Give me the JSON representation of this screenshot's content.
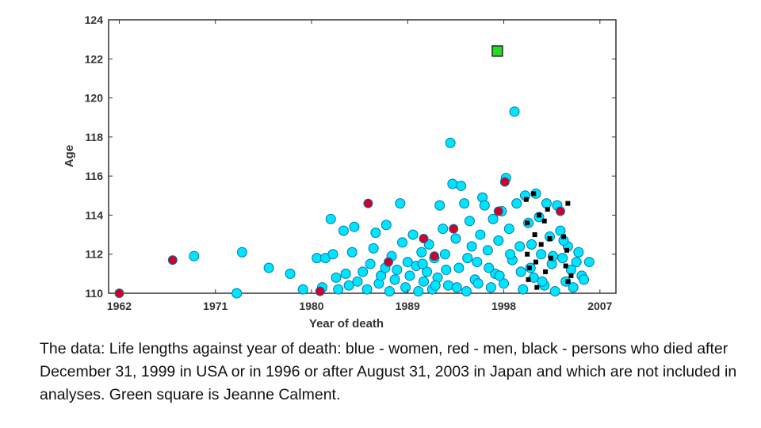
{
  "chart_data": {
    "type": "scatter",
    "xlabel": "Year of death",
    "ylabel": "Age",
    "xlim": [
      1961,
      2008.5
    ],
    "ylim": [
      110,
      124
    ],
    "x_ticks": [
      1962,
      1971,
      1980,
      1989,
      1998,
      2007
    ],
    "y_ticks": [
      110,
      112,
      114,
      116,
      118,
      120,
      122,
      124
    ],
    "grid": false,
    "colors": {
      "women": "#00e5ff",
      "men": "#d0002a",
      "excluded": "#000000",
      "calment": "#22dd22"
    },
    "series": [
      {
        "name": "blue - women",
        "points": [
          [
            1969,
            111.9
          ],
          [
            1973,
            110.0
          ],
          [
            1973.5,
            112.1
          ],
          [
            1976,
            111.3
          ],
          [
            1978,
            111.0
          ],
          [
            1979.2,
            110.2
          ],
          [
            1980.5,
            111.8
          ],
          [
            1981,
            110.3
          ],
          [
            1981.3,
            111.8
          ],
          [
            1981.8,
            113.8
          ],
          [
            1982,
            112.0
          ],
          [
            1982.3,
            110.8
          ],
          [
            1982.5,
            110.2
          ],
          [
            1983,
            113.2
          ],
          [
            1983.2,
            111.0
          ],
          [
            1983.5,
            110.4
          ],
          [
            1983.8,
            112.1
          ],
          [
            1984,
            113.4
          ],
          [
            1984.3,
            110.6
          ],
          [
            1984.8,
            111.1
          ],
          [
            1985.2,
            110.2
          ],
          [
            1985.5,
            111.5
          ],
          [
            1985.8,
            112.3
          ],
          [
            1986,
            113.1
          ],
          [
            1986.3,
            110.5
          ],
          [
            1986.5,
            110.9
          ],
          [
            1986.9,
            111.3
          ],
          [
            1987,
            113.5
          ],
          [
            1987.3,
            110.1
          ],
          [
            1987.5,
            111.9
          ],
          [
            1987.8,
            110.7
          ],
          [
            1988,
            111.2
          ],
          [
            1988.3,
            114.6
          ],
          [
            1988.5,
            112.6
          ],
          [
            1988.8,
            110.3
          ],
          [
            1989,
            111.6
          ],
          [
            1989.2,
            110.9
          ],
          [
            1989.5,
            113.0
          ],
          [
            1989.8,
            111.4
          ],
          [
            1990,
            110.1
          ],
          [
            1990.3,
            112.1
          ],
          [
            1990.5,
            110.6
          ],
          [
            1990.8,
            111.1
          ],
          [
            1991,
            112.5
          ],
          [
            1991.3,
            110.2
          ],
          [
            1991.5,
            111.8
          ],
          [
            1991.8,
            110.8
          ],
          [
            1992,
            114.5
          ],
          [
            1992.3,
            113.3
          ],
          [
            1992.5,
            112.0
          ],
          [
            1992.8,
            110.4
          ],
          [
            1993,
            117.7
          ],
          [
            1993.2,
            115.6
          ],
          [
            1993.5,
            112.8
          ],
          [
            1993.8,
            111.3
          ],
          [
            1994,
            115.5
          ],
          [
            1994.3,
            114.6
          ],
          [
            1994.5,
            110.1
          ],
          [
            1994.8,
            113.7
          ],
          [
            1995,
            112.4
          ],
          [
            1995.3,
            110.7
          ],
          [
            1995.5,
            111.6
          ],
          [
            1995.8,
            113.0
          ],
          [
            1996,
            114.9
          ],
          [
            1996.2,
            114.5
          ],
          [
            1996.5,
            112.2
          ],
          [
            1996.8,
            110.3
          ],
          [
            1997,
            113.8
          ],
          [
            1997.2,
            111.0
          ],
          [
            1997.5,
            112.7
          ],
          [
            1997.8,
            114.2
          ],
          [
            1998,
            110.5
          ],
          [
            1998.2,
            115.9
          ],
          [
            1998.5,
            113.3
          ],
          [
            1998.8,
            111.7
          ],
          [
            1999,
            119.3
          ],
          [
            1999.2,
            114.6
          ],
          [
            1999.5,
            112.4
          ],
          [
            1999.8,
            110.2
          ],
          [
            2000,
            115.0
          ],
          [
            2000.3,
            113.6
          ],
          [
            2000.5,
            111.3
          ],
          [
            2000.8,
            110.8
          ],
          [
            2001,
            115.1
          ],
          [
            2001.3,
            113.9
          ],
          [
            2001.5,
            112.0
          ],
          [
            2001.8,
            110.4
          ],
          [
            2002,
            114.6
          ],
          [
            2002.3,
            112.9
          ],
          [
            2002.5,
            111.5
          ],
          [
            2002.8,
            110.1
          ],
          [
            2003,
            114.5
          ],
          [
            2003.3,
            113.2
          ],
          [
            2003.5,
            111.8
          ],
          [
            2003.8,
            110.6
          ],
          [
            2004,
            112.4
          ],
          [
            2004.3,
            111.2
          ],
          [
            2004.5,
            110.3
          ],
          [
            2004.8,
            111.6
          ],
          [
            2005,
            112.1
          ],
          [
            2005.3,
            110.9
          ],
          [
            2005.5,
            110.7
          ],
          [
            2006,
            111.6
          ],
          [
            1990.4,
            111.5
          ],
          [
            1991.6,
            110.4
          ],
          [
            1992.6,
            111.2
          ],
          [
            1993.6,
            110.3
          ],
          [
            1994.6,
            111.8
          ],
          [
            1995.6,
            110.5
          ],
          [
            1996.6,
            111.3
          ],
          [
            1997.6,
            110.9
          ],
          [
            1998.6,
            112.0
          ],
          [
            1999.6,
            111.1
          ],
          [
            2000.6,
            112.5
          ],
          [
            2001.6,
            110.6
          ],
          [
            2002.6,
            111.9
          ],
          [
            2003.6,
            112.7
          ]
        ]
      },
      {
        "name": "red - men",
        "points": [
          [
            1962,
            110.0
          ],
          [
            1967,
            111.7
          ],
          [
            1980.8,
            110.1
          ],
          [
            1985.3,
            114.6
          ],
          [
            1987.2,
            111.6
          ],
          [
            1990.5,
            112.8
          ],
          [
            1991.5,
            111.9
          ],
          [
            1993.3,
            113.3
          ],
          [
            1997.5,
            114.2
          ],
          [
            1998.1,
            115.7
          ],
          [
            2003.3,
            114.2
          ]
        ]
      },
      {
        "name": "black - excluded",
        "points": [
          [
            2000.1,
            114.8
          ],
          [
            2000.2,
            113.6
          ],
          [
            2000.2,
            112.0
          ],
          [
            2000.3,
            110.7
          ],
          [
            2000.4,
            111.3
          ],
          [
            2000.8,
            115.1
          ],
          [
            2000.9,
            113.0
          ],
          [
            2001.0,
            111.6
          ],
          [
            2001.1,
            110.3
          ],
          [
            2001.3,
            114.0
          ],
          [
            2001.5,
            112.5
          ],
          [
            2001.8,
            113.7
          ],
          [
            2001.9,
            111.1
          ],
          [
            2002.1,
            114.3
          ],
          [
            2002.3,
            112.8
          ],
          [
            2002.4,
            111.8
          ],
          [
            2003.6,
            112.9
          ],
          [
            2003.8,
            111.4
          ],
          [
            2004.0,
            110.6
          ],
          [
            2004.0,
            114.6
          ],
          [
            2004.3,
            110.9
          ],
          [
            2003.9,
            112.2
          ]
        ]
      },
      {
        "name": "Green square is Jeanne Calment",
        "marker": "square",
        "points": [
          [
            1997.4,
            122.4
          ]
        ]
      }
    ]
  },
  "caption": "The data: Life lengths against year of death: blue - women, red - men, black - persons who died after December 31, 1999 in USA or in 1996 or after August 31, 2003 in Japan and which are not included in analyses. Green square is Jeanne Calment."
}
